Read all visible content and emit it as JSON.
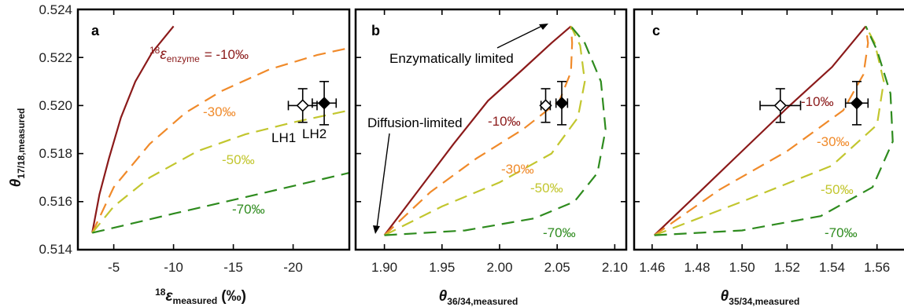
{
  "colors": {
    "dark_red": "#8b1a1a",
    "orange": "#f08a2a",
    "yellow_green": "#c2c62e",
    "green": "#2e8b1e",
    "frame": "#000000"
  },
  "y_axis": {
    "title_symbol": "θ",
    "title_subscript": "17/18,measured",
    "ticks": [
      0.514,
      0.516,
      0.518,
      0.52,
      0.522,
      0.524
    ],
    "tick_labels": [
      "0.514",
      "0.516",
      "0.518",
      "0.520",
      "0.522",
      "0.524"
    ],
    "ylim": [
      0.514,
      0.524
    ]
  },
  "chart_data": [
    {
      "panel": "a",
      "type": "line",
      "xlabel_superscript": "18",
      "xlabel_symbol": "ε",
      "xlabel_subscript": "measured",
      "xlabel_unit": "(‰)",
      "x_ticks": [
        -5,
        -10,
        -15,
        -20
      ],
      "x_tick_labels": [
        "-5",
        "-10",
        "-15",
        "-20"
      ],
      "xlim": [
        -2,
        -24.7
      ],
      "ylim": [
        0.514,
        0.524
      ],
      "series": [
        {
          "label": "-10‰",
          "color": "#8b1a1a",
          "style": "solid",
          "points": [
            [
              -3.2,
              0.5147
            ],
            [
              -3.8,
              0.5163
            ],
            [
              -4.6,
              0.5178
            ],
            [
              -5.6,
              0.5195
            ],
            [
              -6.8,
              0.521
            ],
            [
              -8.2,
              0.5222
            ],
            [
              -10,
              0.5233
            ]
          ]
        },
        {
          "label": "-30‰",
          "color": "#f08a2a",
          "style": "dashed",
          "points": [
            [
              -3.2,
              0.5147
            ],
            [
              -5,
              0.5166
            ],
            [
              -8,
              0.5184
            ],
            [
              -11,
              0.5197
            ],
            [
              -14,
              0.5206
            ],
            [
              -18,
              0.5215
            ],
            [
              -22,
              0.5221
            ],
            [
              -24.7,
              0.5224
            ]
          ]
        },
        {
          "label": "-50‰",
          "color": "#c2c62e",
          "style": "dashed",
          "points": [
            [
              -3.2,
              0.5147
            ],
            [
              -5,
              0.5158
            ],
            [
              -8,
              0.517
            ],
            [
              -12,
              0.5181
            ],
            [
              -16,
              0.5188
            ],
            [
              -20,
              0.5193
            ],
            [
              -24.7,
              0.5198
            ]
          ]
        },
        {
          "label": "-70‰",
          "color": "#2e8b1e",
          "style": "dashed",
          "points": [
            [
              -3.2,
              0.5147
            ],
            [
              -10,
              0.5155
            ],
            [
              -17,
              0.5163
            ],
            [
              -24.7,
              0.5172
            ]
          ]
        }
      ],
      "data_points": [
        {
          "label": "LH1",
          "x": -20.8,
          "y": 0.52,
          "xerr": 1.2,
          "yerr": 0.0007,
          "filled": false
        },
        {
          "label": "LH2",
          "x": -22.6,
          "y": 0.5201,
          "xerr": 1.0,
          "yerr": 0.0009,
          "filled": true
        }
      ],
      "annotations": {
        "enzyme_superscript": "18",
        "enzyme_symbol": "ε",
        "enzyme_subscript": "enzyme",
        "enzyme_value": "= -10‰"
      }
    },
    {
      "panel": "b",
      "type": "line",
      "xlabel_symbol": "θ",
      "xlabel_subscript": "36/34,measured",
      "x_ticks": [
        1.9,
        1.95,
        2.0,
        2.05,
        2.1
      ],
      "x_tick_labels": [
        "1.90",
        "1.95",
        "2.00",
        "2.05",
        "2.10"
      ],
      "xlim": [
        1.875,
        2.11
      ],
      "ylim": [
        0.514,
        0.524
      ],
      "series": [
        {
          "label": "-10‰",
          "color": "#8b1a1a",
          "style": "solid",
          "points": [
            [
              1.9,
              0.5146
            ],
            [
              1.93,
              0.5165
            ],
            [
              1.96,
              0.5184
            ],
            [
              1.99,
              0.5202
            ],
            [
              2.02,
              0.5215
            ],
            [
              2.045,
              0.5226
            ],
            [
              2.062,
              0.5233
            ]
          ]
        },
        {
          "label": "-30‰",
          "color": "#f08a2a",
          "style": "dashed",
          "points": [
            [
              1.9,
              0.5146
            ],
            [
              1.94,
              0.5164
            ],
            [
              1.98,
              0.5178
            ],
            [
              2.02,
              0.519
            ],
            [
              2.052,
              0.5202
            ],
            [
              2.062,
              0.5214
            ],
            [
              2.063,
              0.5226
            ],
            [
              2.062,
              0.5233
            ]
          ]
        },
        {
          "label": "-50‰",
          "color": "#c2c62e",
          "style": "dashed",
          "points": [
            [
              1.9,
              0.5146
            ],
            [
              1.95,
              0.5158
            ],
            [
              2.0,
              0.5168
            ],
            [
              2.045,
              0.518
            ],
            [
              2.068,
              0.5195
            ],
            [
              2.074,
              0.521
            ],
            [
              2.07,
              0.5225
            ],
            [
              2.062,
              0.5233
            ]
          ]
        },
        {
          "label": "-70‰",
          "color": "#2e8b1e",
          "style": "dashed",
          "points": [
            [
              1.9,
              0.5146
            ],
            [
              1.97,
              0.5148
            ],
            [
              2.03,
              0.5153
            ],
            [
              2.065,
              0.516
            ],
            [
              2.085,
              0.5172
            ],
            [
              2.092,
              0.519
            ],
            [
              2.088,
              0.521
            ],
            [
              2.074,
              0.5226
            ],
            [
              2.062,
              0.5233
            ]
          ]
        }
      ],
      "data_points": [
        {
          "label": "LH1",
          "x": 2.04,
          "y": 0.52,
          "xerr": 0.004,
          "yerr": 0.0007,
          "filled": false
        },
        {
          "label": "LH2",
          "x": 2.054,
          "y": 0.5201,
          "xerr": 0.005,
          "yerr": 0.0009,
          "filled": true
        }
      ],
      "annotations": {
        "enzymatically_limited": "Enzymatically limited",
        "diffusion_limited": "Diffusion-limited"
      }
    },
    {
      "panel": "c",
      "type": "line",
      "xlabel_symbol": "θ",
      "xlabel_subscript": "35/34,measured",
      "x_ticks": [
        1.46,
        1.48,
        1.5,
        1.52,
        1.54,
        1.56
      ],
      "x_tick_labels": [
        "1.46",
        "1.48",
        "1.50",
        "1.52",
        "1.54",
        "1.56"
      ],
      "xlim": [
        1.452,
        1.572
      ],
      "ylim": [
        0.514,
        0.524
      ],
      "series": [
        {
          "label": "-10‰",
          "color": "#8b1a1a",
          "style": "solid",
          "points": [
            [
              1.461,
              0.5146
            ],
            [
              1.48,
              0.5163
            ],
            [
              1.5,
              0.5181
            ],
            [
              1.52,
              0.5199
            ],
            [
              1.54,
              0.5216
            ],
            [
              1.555,
              0.5233
            ]
          ]
        },
        {
          "label": "-30‰",
          "color": "#f08a2a",
          "style": "dashed",
          "points": [
            [
              1.461,
              0.5146
            ],
            [
              1.49,
              0.5165
            ],
            [
              1.52,
              0.5181
            ],
            [
              1.545,
              0.5198
            ],
            [
              1.554,
              0.5213
            ],
            [
              1.556,
              0.5226
            ],
            [
              1.555,
              0.5233
            ]
          ]
        },
        {
          "label": "-50‰",
          "color": "#c2c62e",
          "style": "dashed",
          "points": [
            [
              1.461,
              0.5146
            ],
            [
              1.5,
              0.516
            ],
            [
              1.54,
              0.5175
            ],
            [
              1.56,
              0.5192
            ],
            [
              1.563,
              0.521
            ],
            [
              1.559,
              0.5226
            ],
            [
              1.555,
              0.5233
            ]
          ]
        },
        {
          "label": "-70‰",
          "color": "#2e8b1e",
          "style": "dashed",
          "points": [
            [
              1.461,
              0.5146
            ],
            [
              1.5,
              0.5148
            ],
            [
              1.535,
              0.5154
            ],
            [
              1.558,
              0.5166
            ],
            [
              1.567,
              0.5185
            ],
            [
              1.566,
              0.5205
            ],
            [
              1.56,
              0.5223
            ],
            [
              1.555,
              0.5233
            ]
          ]
        }
      ],
      "data_points": [
        {
          "label": "LH1",
          "x": 1.517,
          "y": 0.52,
          "xerr": 0.009,
          "yerr": 0.0007,
          "filled": false
        },
        {
          "label": "LH2",
          "x": 1.551,
          "y": 0.5201,
          "xerr": 0.005,
          "yerr": 0.0009,
          "filled": true
        }
      ]
    }
  ]
}
